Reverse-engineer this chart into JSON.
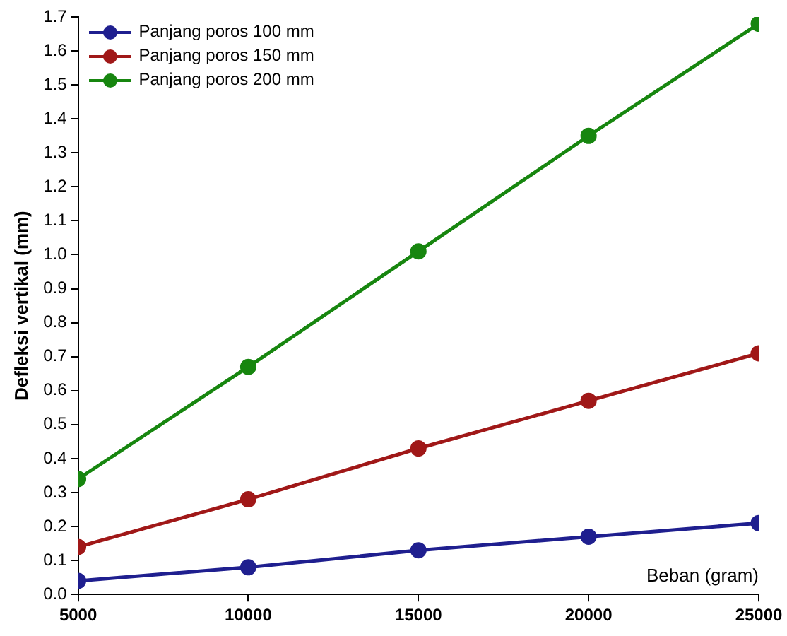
{
  "chart_data": {
    "type": "line",
    "xlabel": "Beban (gram)",
    "ylabel": "Defleksi vertikal (mm)",
    "x": [
      5000,
      10000,
      15000,
      20000,
      25000
    ],
    "series": [
      {
        "name": "Panjang poros 100 mm",
        "color": "#1f1f8f",
        "values": [
          0.04,
          0.08,
          0.13,
          0.17,
          0.21
        ]
      },
      {
        "name": "Panjang poros 150 mm",
        "color": "#a01818",
        "values": [
          0.14,
          0.28,
          0.43,
          0.57,
          0.71
        ]
      },
      {
        "name": "Panjang poros 200 mm",
        "color": "#17860f",
        "values": [
          0.34,
          0.67,
          1.01,
          1.35,
          1.68
        ]
      }
    ],
    "xlim": [
      5000,
      25000
    ],
    "xticks": [
      5000,
      10000,
      15000,
      20000,
      25000
    ],
    "ylim": [
      0,
      1.7
    ],
    "yticks": [
      {
        "value": 0,
        "label": "0.0"
      },
      {
        "value": 0.1,
        "label": "0.1"
      },
      {
        "value": 0.2,
        "label": "0.2"
      },
      {
        "value": 0.3,
        "label": "0.3"
      },
      {
        "value": 0.4,
        "label": "0.4"
      },
      {
        "value": 0.5,
        "label": "0.5"
      },
      {
        "value": 0.6,
        "label": "0.6"
      },
      {
        "value": 0.7,
        "label": "0.7"
      },
      {
        "value": 0.8,
        "label": "0.8"
      },
      {
        "value": 0.9,
        "label": "0.9"
      },
      {
        "value": 1.0,
        "label": "1.0"
      },
      {
        "value": 1.1,
        "label": "1.1"
      },
      {
        "value": 1.2,
        "label": "1.2"
      },
      {
        "value": 1.3,
        "label": "1.3"
      },
      {
        "value": 1.4,
        "label": "1.4"
      },
      {
        "value": 1.5,
        "label": "1.5"
      },
      {
        "value": 1.6,
        "label": "1.6"
      },
      {
        "value": 1.7,
        "label": "1.7"
      }
    ],
    "grid": false,
    "legend": "top left",
    "marker": "circle",
    "line_style": "solid"
  }
}
